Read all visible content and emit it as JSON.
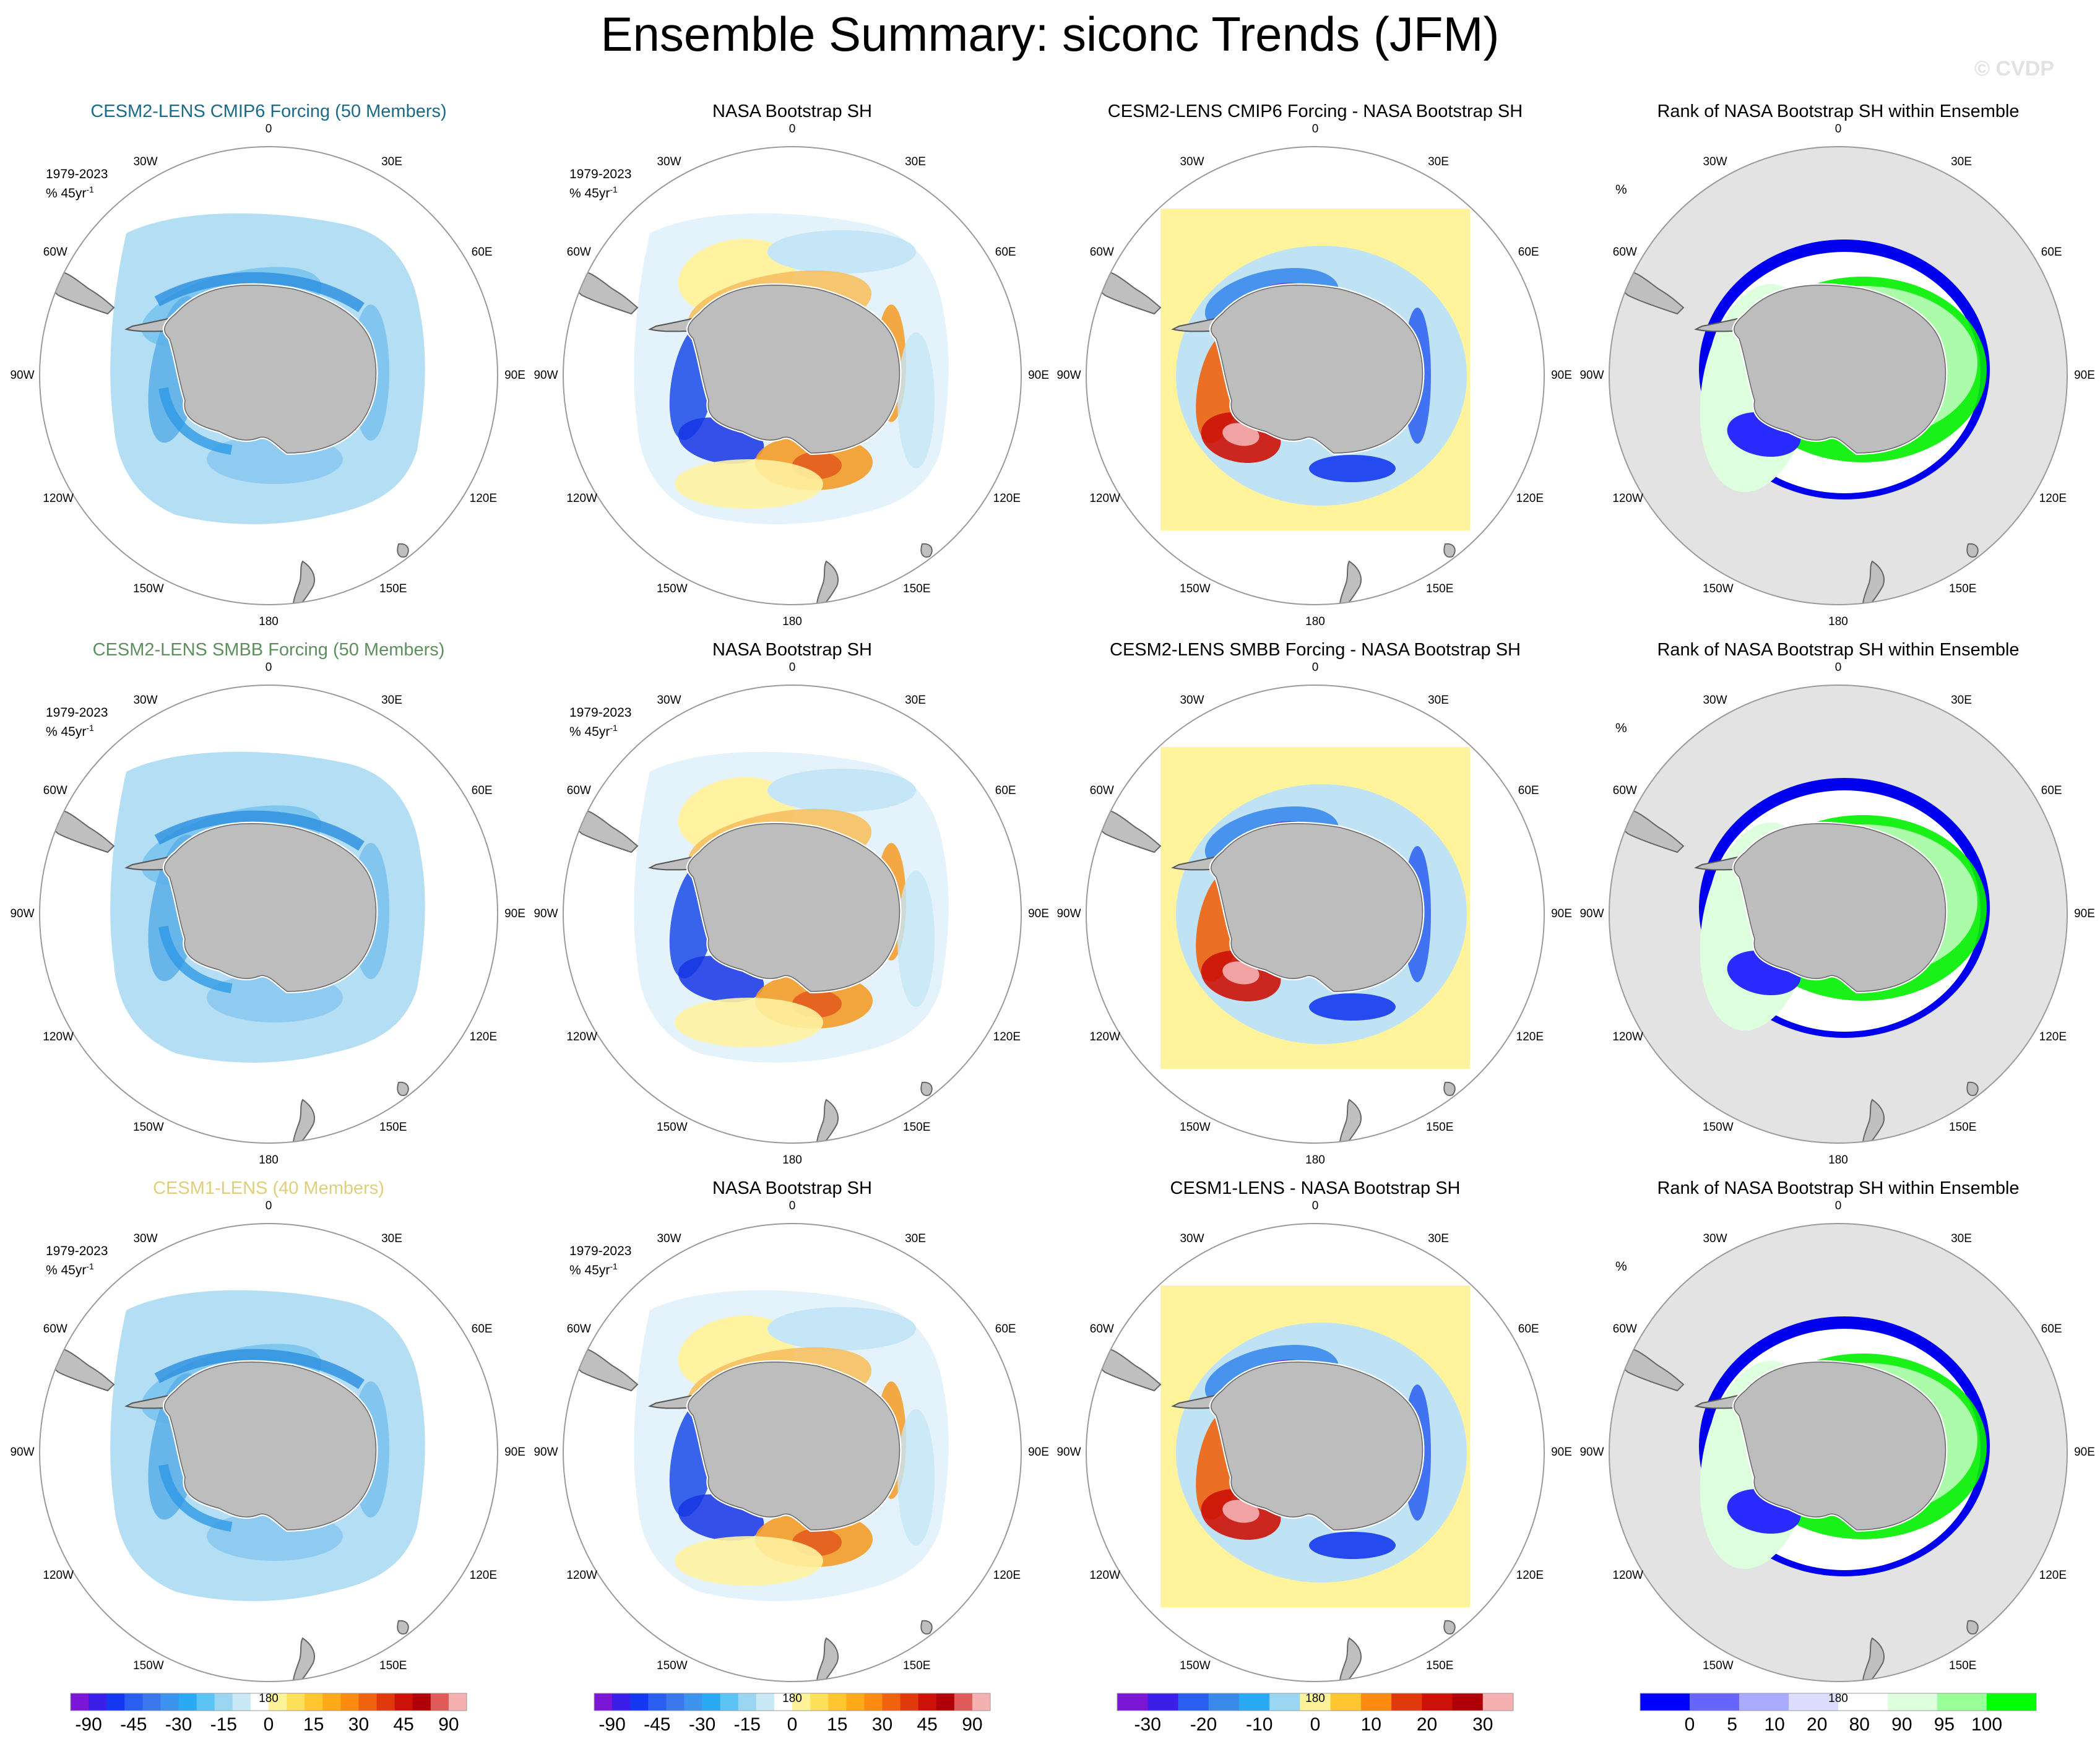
{
  "title": "Ensemble Summary: siconc Trends (JFM)",
  "watermark": "© CVDP",
  "period_label": "1979-2023",
  "units_label": "% 45yr",
  "units_exp": "-1",
  "rank_units": "%",
  "longitude_labels": [
    "0",
    "30E",
    "60E",
    "90E",
    "120E",
    "150E",
    "180",
    "150W",
    "120W",
    "90W",
    "60W",
    "30W"
  ],
  "rows": [
    {
      "model_title": "CESM2-LENS CMIP6 Forcing (50 Members)",
      "model_color": "#1b6a89",
      "obs_title": "NASA Bootstrap SH",
      "diff_title": "CESM2-LENS CMIP6 Forcing - NASA Bootstrap SH",
      "rank_title": "Rank of NASA Bootstrap SH within Ensemble"
    },
    {
      "model_title": "CESM2-LENS SMBB Forcing (50 Members)",
      "model_color": "#5f8f5f",
      "obs_title": "NASA Bootstrap SH",
      "diff_title": "CESM2-LENS SMBB Forcing - NASA Bootstrap SH",
      "rank_title": "Rank of NASA Bootstrap SH within Ensemble"
    },
    {
      "model_title": "CESM1-LENS (40 Members)",
      "model_color": "#e0cf7a",
      "obs_title": "NASA Bootstrap SH",
      "diff_title": "CESM1-LENS - NASA Bootstrap SH",
      "rank_title": "Rank of NASA Bootstrap SH within Ensemble"
    }
  ],
  "colorbars": [
    {
      "colors": [
        "#7b16d6",
        "#3b1ee8",
        "#1438f0",
        "#2a5ef0",
        "#3a78ec",
        "#3c94ee",
        "#2aaaf2",
        "#5cc4f4",
        "#9ad6f2",
        "#c8e8f6",
        "#ffffff",
        "#fff39a",
        "#ffe05a",
        "#ffc630",
        "#ffaa18",
        "#ff8a10",
        "#f0620e",
        "#e03a0c",
        "#cc1208",
        "#b00008",
        "#e05a5a",
        "#f5b0b0"
      ],
      "labels": [
        "-90",
        "-45",
        "-30",
        "-15",
        "0",
        "15",
        "30",
        "45",
        "90"
      ]
    },
    {
      "colors": [
        "#7b16d6",
        "#3b1ee8",
        "#1438f0",
        "#2a5ef0",
        "#3a78ec",
        "#3c94ee",
        "#2aaaf2",
        "#5cc4f4",
        "#9ad6f2",
        "#c8e8f6",
        "#ffffff",
        "#fff39a",
        "#ffe05a",
        "#ffc630",
        "#ffaa18",
        "#ff8a10",
        "#f0620e",
        "#e03a0c",
        "#cc1208",
        "#b00008",
        "#e05a5a",
        "#f5b0b0"
      ],
      "labels": [
        "-90",
        "-45",
        "-30",
        "-15",
        "0",
        "15",
        "30",
        "45",
        "90"
      ]
    },
    {
      "colors": [
        "#7b16d6",
        "#3b1ee8",
        "#2a5ef0",
        "#3a8aec",
        "#2aaaf2",
        "#9ad6f2",
        "#fff39a",
        "#ffc630",
        "#ff8a10",
        "#e03a0c",
        "#cc1208",
        "#b00008",
        "#f5b0b0"
      ],
      "labels": [
        "-30",
        "-20",
        "-10",
        "0",
        "10",
        "20",
        "30"
      ]
    },
    {
      "colors": [
        "#0000ff",
        "#6666ff",
        "#aaaaff",
        "#dcdcff",
        "#ffffff",
        "#ddffdd",
        "#99ff99",
        "#00ff00"
      ],
      "labels": [
        "0",
        "5",
        "10",
        "20",
        "80",
        "90",
        "95",
        "100"
      ]
    }
  ]
}
